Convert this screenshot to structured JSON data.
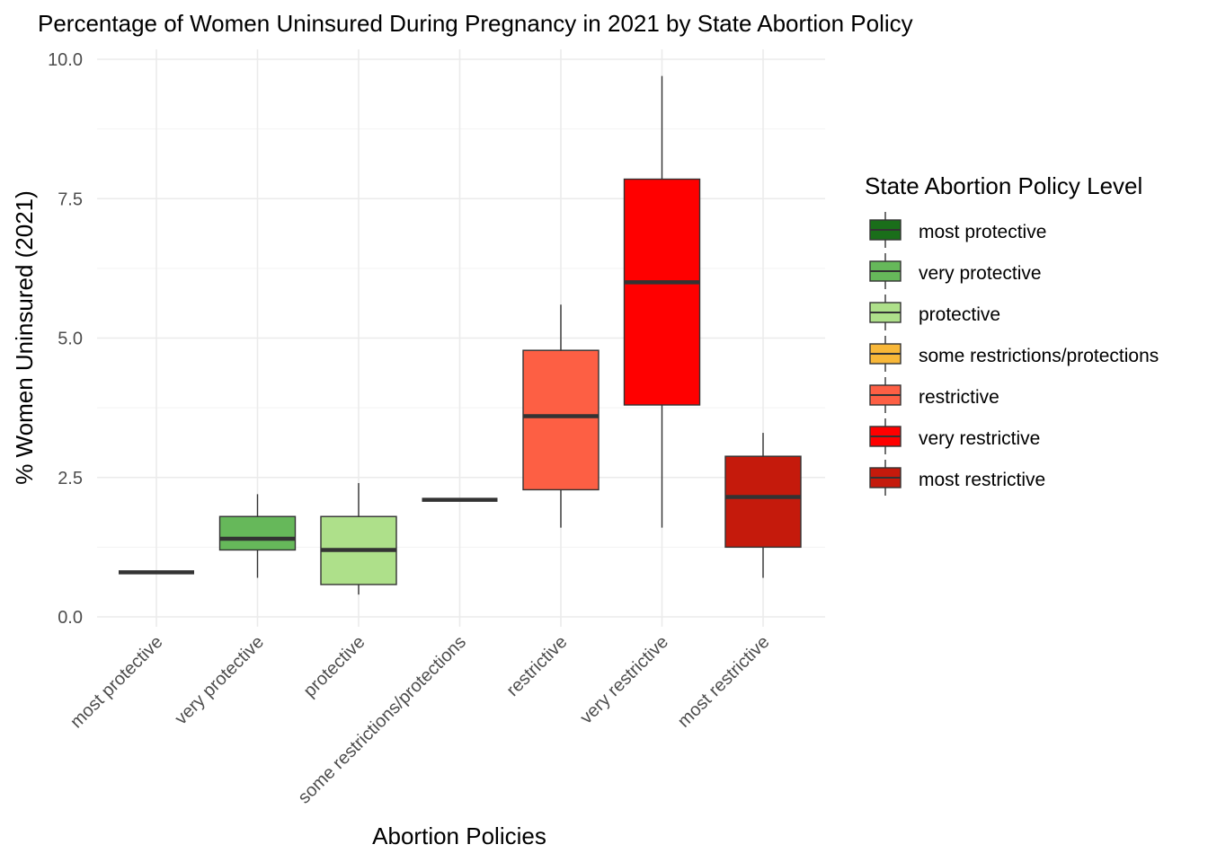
{
  "chart_data": {
    "type": "boxplot",
    "title": "Percentage of Women Uninsured During Pregnancy in 2021 by State Abortion Policy",
    "xlabel": "Abortion Policies",
    "ylabel": "% Women Uninsured (2021)",
    "ylim": [
      0,
      10
    ],
    "y_ticks": [
      0,
      2.5,
      5,
      7.5,
      10
    ],
    "y_tick_labels": [
      "0.0",
      "2.5",
      "5.0",
      "7.5",
      "10.0"
    ],
    "grid": true,
    "legend": {
      "title": "State Abortion Policy Level",
      "placement": "right"
    },
    "categories": [
      "most protective",
      "very protective",
      "protective",
      "some restrictions/protections",
      "restrictive",
      "very restrictive",
      "most restrictive"
    ],
    "colors": [
      "#1a6e1a",
      "#66b85a",
      "#aee08a",
      "#f8b738",
      "#fd5f44",
      "#ff0000",
      "#c51a0c"
    ],
    "boxes": [
      {
        "category": "most protective",
        "min": 0.8,
        "q1": 0.8,
        "median": 0.8,
        "q3": 0.8,
        "max": 0.8
      },
      {
        "category": "very protective",
        "min": 0.7,
        "q1": 1.2,
        "median": 1.4,
        "q3": 1.8,
        "max": 2.2
      },
      {
        "category": "protective",
        "min": 0.4,
        "q1": 0.58,
        "median": 1.2,
        "q3": 1.8,
        "max": 2.4
      },
      {
        "category": "some restrictions/protections",
        "min": 2.1,
        "q1": 2.1,
        "median": 2.1,
        "q3": 2.1,
        "max": 2.1
      },
      {
        "category": "restrictive",
        "min": 1.6,
        "q1": 2.28,
        "median": 3.6,
        "q3": 4.78,
        "max": 5.6
      },
      {
        "category": "very restrictive",
        "min": 1.6,
        "q1": 3.8,
        "median": 6.0,
        "q3": 7.85,
        "max": 9.7
      },
      {
        "category": "most restrictive",
        "min": 0.7,
        "q1": 1.25,
        "median": 2.15,
        "q3": 2.88,
        "max": 3.3
      }
    ]
  }
}
